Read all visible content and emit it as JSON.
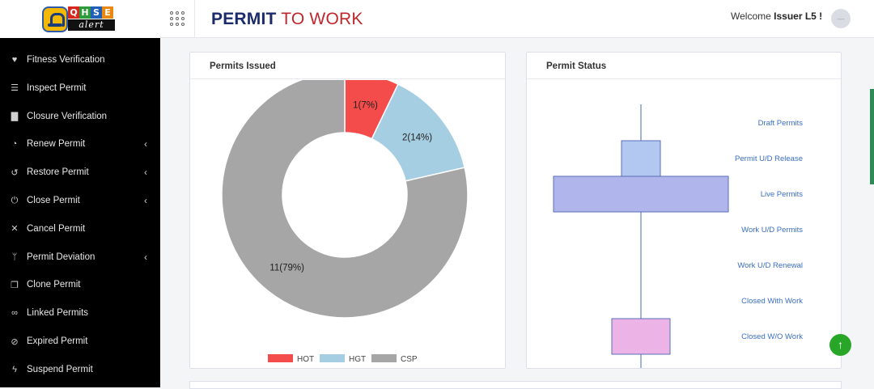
{
  "header": {
    "logo_letters": [
      "Q",
      "H",
      "S",
      "E"
    ],
    "logo_letter_colors": [
      "#d7261e",
      "#2e9b3b",
      "#1f5fb8",
      "#e88a12"
    ],
    "logo_word": "alert",
    "title_part1": "PERMIT",
    "title_part2": "TO WORK",
    "welcome_prefix": "Welcome",
    "welcome_user": "Issuer L5 !",
    "avatar_text": "—"
  },
  "sidebar": {
    "items": [
      {
        "label": "Fitness Verification",
        "icon": "heart-icon",
        "glyph": "♥",
        "has_submenu": false
      },
      {
        "label": "Inspect Permit",
        "icon": "list-icon",
        "glyph": "☰",
        "has_submenu": false
      },
      {
        "label": "Closure Verification",
        "icon": "file-icon",
        "glyph": "▇",
        "has_submenu": false
      },
      {
        "label": "Renew Permit",
        "icon": "clock-icon",
        "glyph": "◔",
        "has_submenu": true
      },
      {
        "label": "Restore Permit",
        "icon": "undo-icon",
        "glyph": "↺",
        "has_submenu": true
      },
      {
        "label": "Close Permit",
        "icon": "power-icon",
        "glyph": "⏻",
        "has_submenu": true
      },
      {
        "label": "Cancel Permit",
        "icon": "close-icon",
        "glyph": "✕",
        "has_submenu": false
      },
      {
        "label": "Permit Deviation",
        "icon": "branch-icon",
        "glyph": "ᛘ",
        "has_submenu": true
      },
      {
        "label": "Clone Permit",
        "icon": "copy-icon",
        "glyph": "❐",
        "has_submenu": false
      },
      {
        "label": "Linked Permits",
        "icon": "link-icon",
        "glyph": "∞",
        "has_submenu": false
      },
      {
        "label": "Expired Permit",
        "icon": "ban-icon",
        "glyph": "⊘",
        "has_submenu": false
      },
      {
        "label": "Suspend Permit",
        "icon": "bolt-icon",
        "glyph": "ϟ",
        "has_submenu": false
      }
    ],
    "chevron": "‹"
  },
  "panels": {
    "issued_title": "Permits Issued",
    "status_title": "Permit Status"
  },
  "chart_data": [
    {
      "type": "pie",
      "title": "Permits Issued",
      "style": "donut",
      "series": [
        {
          "name": "HOT",
          "value": 1,
          "label": "1(7%)",
          "color": "#f44b4b"
        },
        {
          "name": "HGT",
          "value": 2,
          "label": "2(14%)",
          "color": "#a6cee3"
        },
        {
          "name": "CSP",
          "value": 11,
          "label": "11(79%)",
          "color": "#a6a6a6"
        }
      ],
      "legend_position": "bottom"
    },
    {
      "type": "bar",
      "title": "Permit Status",
      "orientation": "horizontal-centered",
      "categories": [
        "Draft Permits",
        "Permit U/D Release",
        "Live Permits",
        "Work U/D Permits",
        "Work U/D Renewal",
        "Closed With Work",
        "Closed W/O Work"
      ],
      "values": [
        0,
        2,
        9,
        0,
        0,
        0,
        3
      ],
      "colors": [
        "#b3c8f0",
        "#b3c8f0",
        "#b0b6ec",
        "#b0b6ec",
        "#b0b6ec",
        "#b0b6ec",
        "#ecb4e6"
      ],
      "label_color": "#3a6fc4"
    }
  ],
  "buttons": {
    "scroll_top": "↑"
  }
}
